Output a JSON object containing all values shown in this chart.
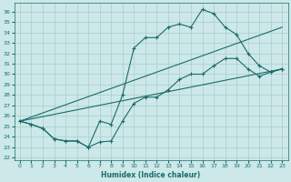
{
  "title": "",
  "xlabel": "Humidex (Indice chaleur)",
  "bg_color": "#cce8e8",
  "grid_color": "#aacccc",
  "line_color": "#1a6b6b",
  "xlim": [
    -0.5,
    23.5
  ],
  "ylim": [
    21.8,
    36.8
  ],
  "yticks": [
    22,
    23,
    24,
    25,
    26,
    27,
    28,
    29,
    30,
    31,
    32,
    33,
    34,
    35,
    36
  ],
  "xticks": [
    0,
    1,
    2,
    3,
    4,
    5,
    6,
    7,
    8,
    9,
    10,
    11,
    12,
    13,
    14,
    15,
    16,
    17,
    18,
    19,
    20,
    21,
    22,
    23
  ],
  "upper_x": [
    0,
    1,
    2,
    3,
    4,
    5,
    6,
    7,
    8,
    9,
    10,
    11,
    12,
    13,
    14,
    15,
    16,
    17,
    18,
    19,
    20,
    21,
    22,
    23
  ],
  "upper_y": [
    25.5,
    25.2,
    24.8,
    23.8,
    23.6,
    23.6,
    23.0,
    25.5,
    25.2,
    28.0,
    32.5,
    33.5,
    33.5,
    34.5,
    34.8,
    34.5,
    36.2,
    35.8,
    34.5,
    33.8,
    32.0,
    30.8,
    30.2,
    30.5
  ],
  "lower_x": [
    0,
    1,
    2,
    3,
    4,
    5,
    6,
    7,
    8,
    9,
    10,
    11,
    12,
    13,
    14,
    15,
    16,
    17,
    18,
    19,
    20,
    21,
    22,
    23
  ],
  "lower_y": [
    25.5,
    25.2,
    24.8,
    23.8,
    23.6,
    23.6,
    23.0,
    23.5,
    23.6,
    25.5,
    27.2,
    27.8,
    27.8,
    28.5,
    29.5,
    30.0,
    30.0,
    30.8,
    31.5,
    31.5,
    30.5,
    29.8,
    30.2,
    30.5
  ],
  "trend1_x": [
    0,
    23
  ],
  "trend1_y": [
    25.5,
    34.5
  ],
  "trend2_x": [
    0,
    23
  ],
  "trend2_y": [
    25.5,
    30.5
  ]
}
